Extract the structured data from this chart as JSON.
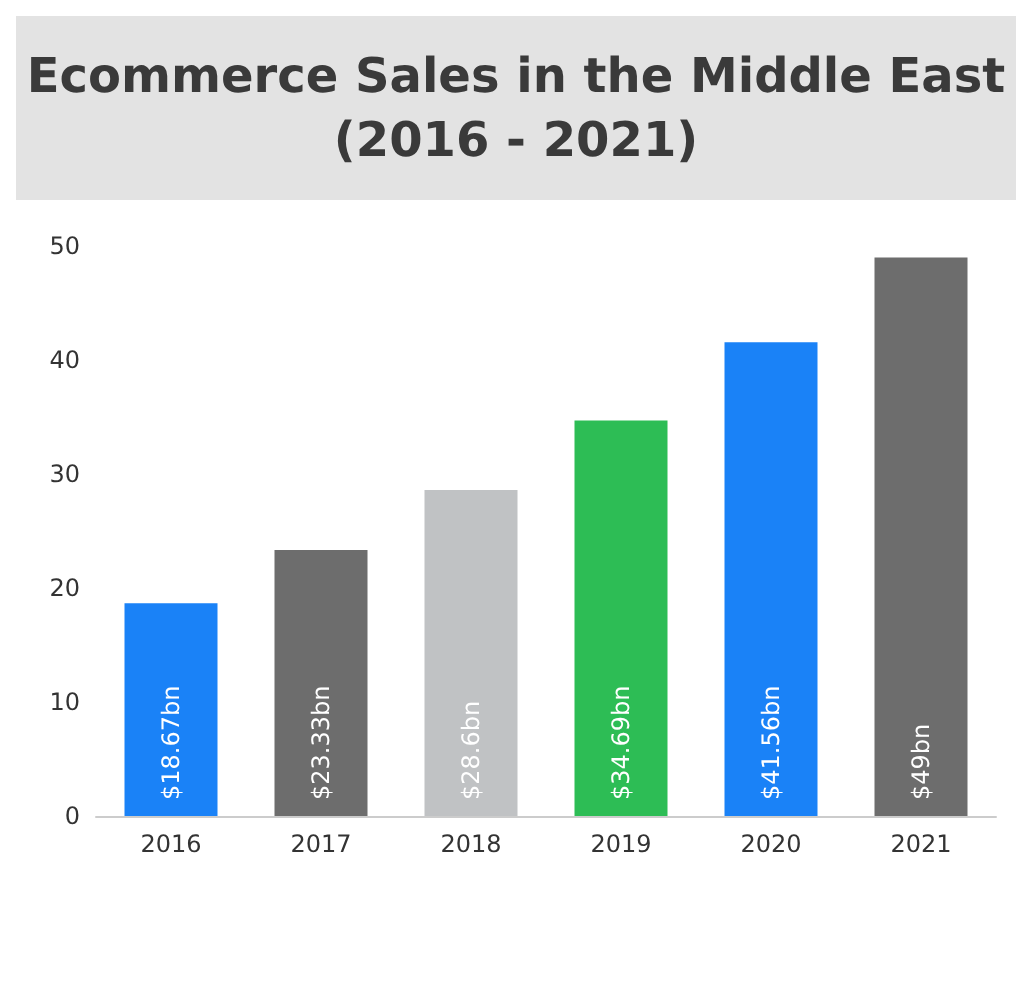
{
  "chart_data": {
    "type": "bar",
    "title": "Ecommerce Sales in the Middle East\n(2016 - 2021)",
    "categories": [
      "2016",
      "2017",
      "2018",
      "2019",
      "2020",
      "2021"
    ],
    "values": [
      18.67,
      23.33,
      28.6,
      34.69,
      41.56,
      49
    ],
    "colors": [
      "#1a82f7",
      "#6d6d6d",
      "#c0c2c4",
      "#2dbd55",
      "#1a82f7",
      "#6d6d6d"
    ],
    "value_labels": [
      "$18.67bn",
      "$23.33bn",
      "$28.6bn",
      "$34.69bn",
      "$41.56bn",
      "$49bn"
    ],
    "ylim": [
      0,
      50
    ],
    "yticks": [
      0,
      10,
      20,
      30,
      40,
      50
    ],
    "grid": false
  }
}
